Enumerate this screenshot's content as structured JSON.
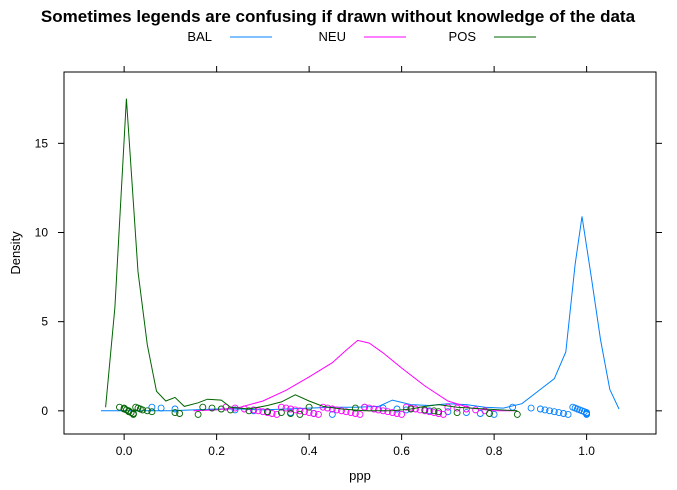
{
  "chart_data": {
    "type": "line",
    "title": "Sometimes legends are confusing if drawn without knowledge of the data",
    "xlabel": "ppp",
    "ylabel": "Density",
    "xlim": [
      -0.13,
      1.15
    ],
    "ylim": [
      -1.3,
      19.0
    ],
    "x_ticks": [
      0.0,
      0.2,
      0.4,
      0.6,
      0.8,
      1.0
    ],
    "x_tick_labels": [
      "0.0",
      "0.2",
      "0.4",
      "0.6",
      "0.8",
      "1.0"
    ],
    "y_ticks": [
      0,
      5,
      10,
      15
    ],
    "y_tick_labels": [
      "0",
      "5",
      "10",
      "15"
    ],
    "grid": false,
    "legend_position": "top",
    "series": [
      {
        "name": "BAL",
        "color": "#0080ff",
        "points": [
          [
            -0.05,
            0.0
          ],
          [
            0.0,
            0.0
          ],
          [
            0.05,
            0.0
          ],
          [
            0.1,
            0.0
          ],
          [
            0.15,
            0.05
          ],
          [
            0.2,
            0.1
          ],
          [
            0.25,
            0.1
          ],
          [
            0.3,
            0.05
          ],
          [
            0.35,
            0.1
          ],
          [
            0.4,
            0.15
          ],
          [
            0.45,
            0.2
          ],
          [
            0.5,
            0.2
          ],
          [
            0.55,
            0.25
          ],
          [
            0.58,
            0.6
          ],
          [
            0.62,
            0.35
          ],
          [
            0.66,
            0.3
          ],
          [
            0.7,
            0.4
          ],
          [
            0.74,
            0.35
          ],
          [
            0.78,
            0.2
          ],
          [
            0.82,
            0.15
          ],
          [
            0.86,
            0.4
          ],
          [
            0.9,
            1.2
          ],
          [
            0.93,
            1.8
          ],
          [
            0.955,
            3.3
          ],
          [
            0.975,
            8.2
          ],
          [
            0.99,
            10.9
          ],
          [
            1.01,
            7.5
          ],
          [
            1.03,
            4.0
          ],
          [
            1.05,
            1.2
          ],
          [
            1.07,
            0.1
          ]
        ],
        "rug": [
          0.06,
          0.08,
          0.11,
          0.24,
          0.28,
          0.31,
          0.36,
          0.41,
          0.45,
          0.52,
          0.56,
          0.59,
          0.61,
          0.66,
          0.7,
          0.74,
          0.77,
          0.8,
          0.84,
          0.88,
          0.9,
          0.91,
          0.92,
          0.93,
          0.94,
          0.95,
          0.96,
          0.97,
          0.975,
          0.98,
          0.985,
          0.99,
          0.995,
          1.0,
          1.0,
          1.0
        ]
      },
      {
        "name": "NEU",
        "color": "#ff00ff",
        "points": [
          [
            0.15,
            0.0
          ],
          [
            0.2,
            0.05
          ],
          [
            0.25,
            0.2
          ],
          [
            0.3,
            0.55
          ],
          [
            0.35,
            1.15
          ],
          [
            0.4,
            1.9
          ],
          [
            0.45,
            2.7
          ],
          [
            0.48,
            3.4
          ],
          [
            0.505,
            3.95
          ],
          [
            0.53,
            3.8
          ],
          [
            0.56,
            3.25
          ],
          [
            0.6,
            2.4
          ],
          [
            0.65,
            1.4
          ],
          [
            0.7,
            0.55
          ],
          [
            0.75,
            0.15
          ],
          [
            0.8,
            0.0
          ],
          [
            0.85,
            0.0
          ]
        ],
        "rug": [
          0.22,
          0.24,
          0.26,
          0.28,
          0.29,
          0.3,
          0.31,
          0.32,
          0.33,
          0.34,
          0.35,
          0.36,
          0.37,
          0.38,
          0.39,
          0.4,
          0.41,
          0.42,
          0.43,
          0.44,
          0.45,
          0.46,
          0.47,
          0.48,
          0.49,
          0.5,
          0.51,
          0.52,
          0.53,
          0.54,
          0.55,
          0.56,
          0.57,
          0.58,
          0.59,
          0.6,
          0.61,
          0.62,
          0.63,
          0.64,
          0.65,
          0.66,
          0.67,
          0.68,
          0.69,
          0.7,
          0.72,
          0.74,
          0.76,
          0.78
        ]
      },
      {
        "name": "POS",
        "color": "#006400",
        "points": [
          [
            -0.04,
            0.2
          ],
          [
            -0.02,
            5.8
          ],
          [
            0.005,
            17.5
          ],
          [
            0.03,
            7.8
          ],
          [
            0.05,
            3.7
          ],
          [
            0.07,
            1.1
          ],
          [
            0.09,
            0.55
          ],
          [
            0.11,
            0.75
          ],
          [
            0.13,
            0.25
          ],
          [
            0.16,
            0.45
          ],
          [
            0.18,
            0.65
          ],
          [
            0.21,
            0.6
          ],
          [
            0.23,
            0.2
          ],
          [
            0.27,
            0.1
          ],
          [
            0.31,
            0.3
          ],
          [
            0.34,
            0.5
          ],
          [
            0.37,
            0.9
          ],
          [
            0.4,
            0.55
          ],
          [
            0.43,
            0.25
          ],
          [
            0.47,
            0.1
          ],
          [
            0.52,
            0.0
          ],
          [
            0.58,
            0.0
          ],
          [
            0.62,
            0.1
          ],
          [
            0.65,
            0.25
          ],
          [
            0.68,
            0.35
          ],
          [
            0.72,
            0.2
          ],
          [
            0.78,
            0.1
          ],
          [
            0.85,
            0.0
          ]
        ],
        "rug": [
          -0.01,
          0.0,
          0.0,
          0.005,
          0.01,
          0.01,
          0.015,
          0.02,
          0.02,
          0.025,
          0.03,
          0.035,
          0.04,
          0.05,
          0.06,
          0.11,
          0.12,
          0.16,
          0.17,
          0.19,
          0.21,
          0.23,
          0.27,
          0.31,
          0.34,
          0.36,
          0.38,
          0.4,
          0.5,
          0.62,
          0.65,
          0.67,
          0.68,
          0.72,
          0.79,
          0.85
        ]
      }
    ]
  }
}
